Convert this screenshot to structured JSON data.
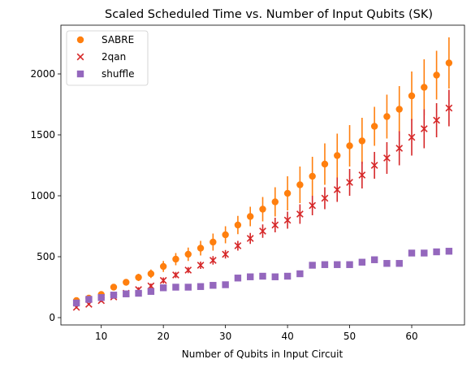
{
  "chart_data": {
    "type": "scatter",
    "title": "Scaled Scheduled Time vs. Number of Input Qubits (SK)",
    "xlabel": "Number of Qubits in Input Circuit",
    "ylabel": "",
    "xlim": [
      3.5,
      68.5
    ],
    "ylim": [
      -60,
      2400
    ],
    "xticks": [
      10,
      20,
      30,
      40,
      50,
      60
    ],
    "yticks": [
      0,
      500,
      1000,
      1500,
      2000
    ],
    "grid": false,
    "legend": "top-left",
    "series": [
      {
        "name": "SABRE",
        "marker": "circle",
        "color": "#ff7f0e",
        "x": [
          6,
          8,
          10,
          12,
          14,
          16,
          18,
          20,
          22,
          24,
          26,
          28,
          30,
          32,
          34,
          36,
          38,
          40,
          42,
          44,
          46,
          48,
          50,
          52,
          54,
          56,
          58,
          60,
          62,
          64,
          66
        ],
        "y": [
          140,
          160,
          190,
          250,
          290,
          330,
          360,
          420,
          480,
          520,
          570,
          620,
          680,
          760,
          830,
          890,
          950,
          1020,
          1090,
          1160,
          1260,
          1330,
          1410,
          1450,
          1570,
          1650,
          1710,
          1820,
          1890,
          1990,
          2090
        ],
        "err": [
          10,
          15,
          20,
          20,
          25,
          30,
          35,
          45,
          50,
          55,
          60,
          70,
          70,
          75,
          80,
          100,
          120,
          140,
          150,
          160,
          170,
          180,
          170,
          190,
          160,
          180,
          190,
          200,
          230,
          200,
          210
        ]
      },
      {
        "name": "2qan",
        "marker": "x",
        "color": "#d62728",
        "x": [
          6,
          8,
          10,
          12,
          14,
          16,
          18,
          20,
          22,
          24,
          26,
          28,
          30,
          32,
          34,
          36,
          38,
          40,
          42,
          44,
          46,
          48,
          50,
          52,
          54,
          56,
          58,
          60,
          62,
          64,
          66
        ],
        "y": [
          85,
          110,
          140,
          170,
          200,
          230,
          260,
          305,
          350,
          390,
          430,
          470,
          520,
          590,
          650,
          710,
          760,
          800,
          850,
          920,
          980,
          1050,
          1110,
          1170,
          1250,
          1310,
          1390,
          1480,
          1550,
          1620,
          1720
        ],
        "err": [
          10,
          10,
          12,
          15,
          15,
          20,
          20,
          25,
          25,
          25,
          30,
          35,
          35,
          40,
          45,
          55,
          60,
          70,
          80,
          80,
          90,
          100,
          110,
          110,
          110,
          130,
          140,
          150,
          160,
          140,
          150
        ]
      },
      {
        "name": "shuffle",
        "marker": "square",
        "color": "#9467bd",
        "x": [
          6,
          8,
          10,
          12,
          14,
          16,
          18,
          20,
          22,
          24,
          26,
          28,
          30,
          32,
          34,
          36,
          38,
          40,
          42,
          44,
          46,
          48,
          50,
          52,
          54,
          56,
          58,
          60,
          62,
          64,
          66
        ],
        "y": [
          120,
          150,
          165,
          185,
          195,
          200,
          215,
          245,
          250,
          250,
          255,
          265,
          270,
          325,
          335,
          340,
          335,
          340,
          360,
          430,
          435,
          435,
          435,
          455,
          475,
          445,
          445,
          530,
          530,
          540,
          545
        ]
      }
    ]
  }
}
